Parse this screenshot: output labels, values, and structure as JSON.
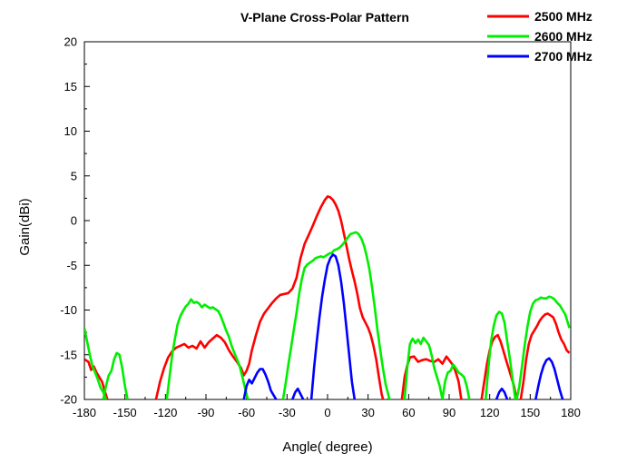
{
  "chart_data": {
    "type": "line",
    "title": "V-Plane Cross-Polar Pattern",
    "xlabel": "Angle( degree)",
    "ylabel": "Gain(dBi)",
    "xlim": [
      -180,
      180
    ],
    "ylim": [
      -20,
      20
    ],
    "xticks": [
      -180,
      -150,
      -120,
      -90,
      -60,
      -30,
      0,
      30,
      60,
      90,
      120,
      150,
      180
    ],
    "yticks": [
      -20,
      -15,
      -10,
      -5,
      0,
      5,
      10,
      15,
      20
    ],
    "grid": false,
    "legend_position": "top-right",
    "series": [
      {
        "name": "2500 MHz",
        "color": "#ff0000",
        "segments": [
          {
            "x": [
              -180,
              -177,
              -175,
              -173,
              -171,
              -169,
              -167,
              -165,
              -163
            ],
            "y": [
              -15.5,
              -15.8,
              -16.7,
              -16.3,
              -17,
              -17.5,
              -18,
              -19,
              -20
            ]
          },
          {
            "x": [
              -127,
              -124,
              -121,
              -118,
              -115,
              -112,
              -109,
              -106,
              -103,
              -100,
              -97,
              -94,
              -91,
              -88,
              -85,
              -82,
              -79,
              -76,
              -73,
              -70,
              -67,
              -64,
              -62,
              -60,
              -58,
              -56,
              -53,
              -50,
              -47,
              -44,
              -41,
              -38,
              -35,
              -32,
              -29,
              -26,
              -23,
              -20,
              -17,
              -14,
              -11,
              -8,
              -5,
              -2,
              0,
              2,
              4,
              6,
              8,
              10,
              12,
              14,
              16,
              18,
              20,
              22,
              24,
              26,
              28,
              30,
              32,
              34,
              36,
              38,
              40,
              42,
              44,
              46
            ],
            "y": [
              -20,
              -18,
              -16.5,
              -15.3,
              -14.6,
              -14.2,
              -14,
              -13.8,
              -14.2,
              -14,
              -14.3,
              -13.5,
              -14.2,
              -13.6,
              -13.2,
              -12.8,
              -13.1,
              -13.6,
              -14.5,
              -15.2,
              -15.8,
              -16.5,
              -17.3,
              -16.8,
              -16,
              -14.5,
              -12.8,
              -11.3,
              -10.4,
              -9.8,
              -9.2,
              -8.7,
              -8.3,
              -8.2,
              -8.1,
              -7.6,
              -6.4,
              -4.2,
              -2.6,
              -1.6,
              -0.6,
              0.5,
              1.5,
              2.3,
              2.7,
              2.6,
              2.3,
              1.8,
              1.1,
              0,
              -1.4,
              -2.8,
              -4.3,
              -5.6,
              -6.8,
              -8.2,
              -9.8,
              -10.8,
              -11.4,
              -12,
              -12.8,
              -14,
              -15.5,
              -17.5,
              -19.4,
              -20.5,
              -21,
              -21.5
            ]
          },
          {
            "x": [
              55,
              57,
              59,
              61,
              64,
              67,
              70,
              73,
              76,
              79,
              82,
              85,
              88,
              91,
              93,
              95,
              97,
              99
            ],
            "y": [
              -20,
              -17.5,
              -16.2,
              -15.3,
              -15.2,
              -15.8,
              -15.6,
              -15.5,
              -15.7,
              -15.8,
              -15.5,
              -16,
              -15.2,
              -15.8,
              -16.2,
              -17,
              -18,
              -20
            ]
          },
          {
            "x": [
              114,
              116,
              118,
              120,
              122,
              124,
              126,
              128,
              130,
              132,
              134,
              136,
              138,
              140
            ],
            "y": [
              -20,
              -18,
              -16,
              -14.5,
              -13.5,
              -13,
              -12.8,
              -13.5,
              -14.5,
              -15.5,
              -16.5,
              -17.5,
              -18.5,
              -20
            ]
          },
          {
            "x": [
              143,
              145,
              147,
              149,
              151,
              153,
              155,
              157,
              159,
              161,
              163,
              165,
              167,
              169,
              171,
              173,
              175,
              177,
              179
            ],
            "y": [
              -20,
              -18,
              -15.5,
              -13.8,
              -12.8,
              -12.3,
              -11.8,
              -11.2,
              -10.8,
              -10.5,
              -10.4,
              -10.6,
              -10.8,
              -11.5,
              -12.5,
              -13.3,
              -13.8,
              -14.5,
              -14.8
            ]
          }
        ]
      },
      {
        "name": "2600 MHz",
        "color": "#00ee00",
        "segments": [
          {
            "x": [
              -180,
              -178,
              -176,
              -174,
              -172,
              -170,
              -168,
              -166,
              -164
            ],
            "y": [
              -12,
              -13.5,
              -15,
              -16.3,
              -17,
              -17.8,
              -18.7,
              -19.2,
              -20
            ]
          },
          {
            "x": [
              -166,
              -164,
              -162,
              -160,
              -158,
              -156,
              -154,
              -152,
              -150,
              -148
            ],
            "y": [
              -20,
              -18.5,
              -17.3,
              -16.8,
              -15.5,
              -14.8,
              -15,
              -16.5,
              -18.5,
              -20
            ]
          },
          {
            "x": [
              -119,
              -117,
              -115,
              -113,
              -111,
              -109,
              -107,
              -105,
              -103,
              -101,
              -99,
              -97,
              -95,
              -93,
              -91,
              -89,
              -87,
              -85,
              -83,
              -81,
              -79,
              -77,
              -75,
              -73,
              -71,
              -69,
              -67,
              -65,
              -63,
              -61,
              -59
            ],
            "y": [
              -20,
              -17.5,
              -15,
              -13.2,
              -11.6,
              -10.7,
              -10.1,
              -9.6,
              -9.3,
              -8.8,
              -9.2,
              -9.1,
              -9.3,
              -9.7,
              -9.4,
              -9.6,
              -9.8,
              -9.7,
              -9.9,
              -10.1,
              -10.7,
              -11.5,
              -12.3,
              -13,
              -14,
              -14.8,
              -15.5,
              -16.3,
              -17.5,
              -18.8,
              -20
            ]
          },
          {
            "x": [
              -33,
              -31,
              -29,
              -27,
              -25,
              -23,
              -21,
              -19,
              -17,
              -15,
              -13,
              -11,
              -9,
              -7,
              -5,
              -3,
              -1,
              1,
              3,
              5,
              7,
              9,
              11,
              13,
              15,
              17,
              19,
              21,
              23,
              25,
              27,
              29,
              31,
              33,
              35,
              37,
              39,
              41,
              43,
              45,
              47,
              49
            ],
            "y": [
              -20,
              -18.2,
              -16.1,
              -14.2,
              -12.2,
              -10.3,
              -8.2,
              -6.5,
              -5.3,
              -4.9,
              -4.7,
              -4.5,
              -4.2,
              -4.1,
              -4,
              -4.1,
              -3.9,
              -3.7,
              -3.6,
              -3.3,
              -3.2,
              -3,
              -2.7,
              -2.3,
              -1.9,
              -1.5,
              -1.4,
              -1.3,
              -1.5,
              -2,
              -2.8,
              -4,
              -5.5,
              -7.5,
              -9.8,
              -12.3,
              -14.5,
              -16.5,
              -18.3,
              -19.5,
              -20.5,
              -21
            ]
          },
          {
            "x": [
              57,
              59,
              61,
              63,
              65,
              67,
              69,
              71,
              73,
              75,
              77,
              79,
              81,
              83,
              85
            ],
            "y": [
              -20,
              -16.5,
              -13.8,
              -13.2,
              -13.7,
              -13.3,
              -13.8,
              -13.1,
              -13.5,
              -13.9,
              -15,
              -16.5,
              -17.5,
              -18.5,
              -20
            ]
          },
          {
            "x": [
              85,
              87,
              89,
              91,
              93,
              95,
              97,
              99,
              101,
              103,
              105
            ],
            "y": [
              -20,
              -18,
              -17,
              -16.8,
              -16.1,
              -16.5,
              -17,
              -17.2,
              -17.5,
              -18.5,
              -20
            ]
          },
          {
            "x": [
              117,
              119,
              121,
              123,
              125,
              127,
              129,
              131,
              133,
              135,
              137,
              139
            ],
            "y": [
              -20,
              -16.5,
              -13.5,
              -11.8,
              -10.6,
              -10.2,
              -10.4,
              -11.4,
              -13.5,
              -15.5,
              -17.8,
              -20
            ]
          },
          {
            "x": [
              140,
              142,
              144,
              146,
              148,
              150,
              152,
              154,
              156,
              158,
              160,
              162,
              164,
              166,
              168,
              170,
              172,
              174,
              176,
              178,
              179
            ],
            "y": [
              -20,
              -18.5,
              -16.2,
              -13.8,
              -11.8,
              -10.2,
              -9.3,
              -8.9,
              -8.8,
              -8.6,
              -8.7,
              -8.7,
              -8.5,
              -8.6,
              -8.8,
              -9.2,
              -9.5,
              -10,
              -10.5,
              -11.5,
              -12
            ]
          }
        ]
      },
      {
        "name": "2700 MHz",
        "color": "#0000ff",
        "segments": [
          {
            "x": [
              -62,
              -60,
              -58,
              -56,
              -54,
              -52,
              -50,
              -48,
              -46,
              -44,
              -42,
              -40,
              -38
            ],
            "y": [
              -20,
              -18.5,
              -17.8,
              -18.2,
              -17.6,
              -17,
              -16.6,
              -16.6,
              -17.2,
              -18,
              -19,
              -19.5,
              -20
            ]
          },
          {
            "x": [
              -26,
              -24,
              -22,
              -20,
              -18
            ],
            "y": [
              -20,
              -19.2,
              -18.8,
              -19.4,
              -20
            ]
          },
          {
            "x": [
              -12,
              -10,
              -8,
              -6,
              -4,
              -2,
              0,
              2,
              4,
              6,
              8,
              10,
              12,
              14,
              16,
              18,
              20
            ],
            "y": [
              -20,
              -16.5,
              -13.5,
              -10.8,
              -8.5,
              -6.6,
              -5,
              -4.2,
              -3.8,
              -4,
              -5,
              -6.8,
              -9.2,
              -12,
              -15,
              -18,
              -20
            ]
          },
          {
            "x": [
              125,
              127,
              129,
              131,
              133
            ],
            "y": [
              -20,
              -19.2,
              -18.8,
              -19.2,
              -20
            ]
          },
          {
            "x": [
              154,
              156,
              158,
              160,
              162,
              164,
              166,
              168,
              170,
              172,
              174
            ],
            "y": [
              -20,
              -18.5,
              -17.2,
              -16.2,
              -15.6,
              -15.4,
              -15.8,
              -16.6,
              -17.8,
              -19,
              -20
            ]
          }
        ]
      }
    ]
  }
}
